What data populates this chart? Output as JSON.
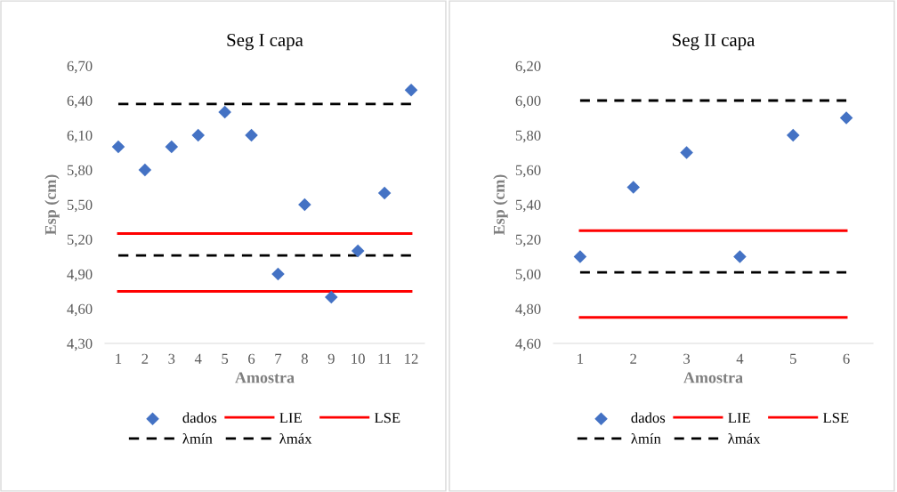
{
  "chart_data": [
    {
      "type": "scatter",
      "title": "Seg I capa",
      "xlabel": "Amostra",
      "ylabel": "Esp (cm)",
      "legend": "bottom",
      "grid": false,
      "categories": [
        "1",
        "2",
        "3",
        "4",
        "5",
        "6",
        "7",
        "8",
        "9",
        "10",
        "11",
        "12"
      ],
      "ylim": [
        4.3,
        6.7
      ],
      "yticks": [
        {
          "value": 4.3,
          "label": "4,30"
        },
        {
          "value": 4.6,
          "label": "4,60"
        },
        {
          "value": 4.9,
          "label": "4,90"
        },
        {
          "value": 5.2,
          "label": "5,20"
        },
        {
          "value": 5.5,
          "label": "5,50"
        },
        {
          "value": 5.8,
          "label": "5,80"
        },
        {
          "value": 6.1,
          "label": "6,10"
        },
        {
          "value": 6.4,
          "label": "6,40"
        },
        {
          "value": 6.7,
          "label": "6,70"
        }
      ],
      "series": [
        {
          "name": "dados",
          "marker": "diamond",
          "color": "#4472c4",
          "values": [
            6.0,
            5.8,
            6.0,
            6.1,
            6.3,
            6.1,
            4.9,
            5.5,
            4.7,
            5.1,
            5.6,
            6.49
          ]
        },
        {
          "name": "LIE",
          "type": "line",
          "marker": "none",
          "line_style": "solid",
          "color": "#ff0000",
          "values": [
            4.75,
            4.75,
            4.75,
            4.75,
            4.75,
            4.75,
            4.75,
            4.75,
            4.75,
            4.75,
            4.75,
            4.75
          ]
        },
        {
          "name": "LSE",
          "type": "line",
          "marker": "none",
          "line_style": "solid",
          "color": "#ff0000",
          "values": [
            5.25,
            5.25,
            5.25,
            5.25,
            5.25,
            5.25,
            5.25,
            5.25,
            5.25,
            5.25,
            5.25,
            5.25
          ]
        },
        {
          "name": "λmín",
          "type": "line",
          "marker": "none",
          "line_style": "dashed",
          "color": "#000000",
          "values": [
            5.06,
            5.06,
            5.06,
            5.06,
            5.06,
            5.06,
            5.06,
            5.06,
            5.06,
            5.06,
            5.06,
            5.06
          ]
        },
        {
          "name": "λmáx",
          "type": "line",
          "marker": "none",
          "line_style": "dashed",
          "color": "#000000",
          "values": [
            6.37,
            6.37,
            6.37,
            6.37,
            6.37,
            6.37,
            6.37,
            6.37,
            6.37,
            6.37,
            6.37,
            6.37
          ]
        }
      ]
    },
    {
      "type": "scatter",
      "title": "Seg II capa",
      "xlabel": "Amostra",
      "ylabel": "Esp (cm)",
      "legend": "bottom",
      "grid": false,
      "categories": [
        "1",
        "2",
        "3",
        "4",
        "5",
        "6"
      ],
      "ylim": [
        4.6,
        6.2
      ],
      "yticks": [
        {
          "value": 4.6,
          "label": "4,60"
        },
        {
          "value": 4.8,
          "label": "4,80"
        },
        {
          "value": 5.0,
          "label": "5,00"
        },
        {
          "value": 5.2,
          "label": "5,20"
        },
        {
          "value": 5.4,
          "label": "5,40"
        },
        {
          "value": 5.6,
          "label": "5,60"
        },
        {
          "value": 5.8,
          "label": "5,80"
        },
        {
          "value": 6.0,
          "label": "6,00"
        },
        {
          "value": 6.2,
          "label": "6,20"
        }
      ],
      "series": [
        {
          "name": "dados",
          "marker": "diamond",
          "color": "#4472c4",
          "values": [
            5.1,
            5.5,
            5.7,
            5.1,
            5.8,
            5.9
          ]
        },
        {
          "name": "LIE",
          "type": "line",
          "marker": "none",
          "line_style": "solid",
          "color": "#ff0000",
          "values": [
            4.75,
            4.75,
            4.75,
            4.75,
            4.75,
            4.75
          ]
        },
        {
          "name": "LSE",
          "type": "line",
          "marker": "none",
          "line_style": "solid",
          "color": "#ff0000",
          "values": [
            5.25,
            5.25,
            5.25,
            5.25,
            5.25,
            5.25
          ]
        },
        {
          "name": "λmín",
          "type": "line",
          "marker": "none",
          "line_style": "dashed",
          "color": "#000000",
          "values": [
            5.01,
            5.01,
            5.01,
            5.01,
            5.01,
            5.01
          ]
        },
        {
          "name": "λmáx",
          "type": "line",
          "marker": "none",
          "line_style": "dashed",
          "color": "#000000",
          "values": [
            6.0,
            6.0,
            6.0,
            6.0,
            6.0,
            6.0
          ]
        }
      ]
    }
  ]
}
